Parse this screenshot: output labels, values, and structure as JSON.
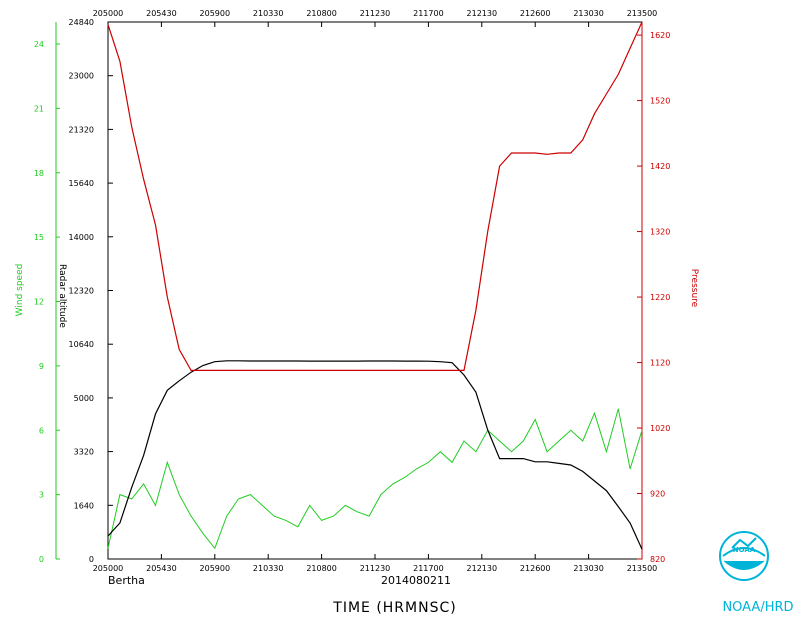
{
  "chart_data": {
    "type": "line",
    "x_axis": {
      "label": "TIME (HRMNSC)",
      "ticks": [
        "205000",
        "205430",
        "205900",
        "210330",
        "210800",
        "211230",
        "211700",
        "212130",
        "212600",
        "213030",
        "213500"
      ]
    },
    "left_axes": [
      {
        "label": "Wind speed",
        "color": "#22cc22",
        "ylim": [
          0,
          25
        ],
        "ticks": [
          "0",
          "3",
          "6",
          "9",
          "12",
          "15",
          "18",
          "21",
          "24"
        ]
      },
      {
        "label": "Radar altitude",
        "color": "#000000",
        "ylim": [
          0,
          24840
        ],
        "ticks": [
          "0",
          "1640",
          "3320",
          "5000",
          "10640",
          "12320",
          "14000",
          "15640",
          "21320",
          "23000",
          "24840"
        ]
      }
    ],
    "right_axis": {
      "label": "Pressure",
      "color": "#cc0000",
      "ylim": [
        820,
        1640
      ],
      "ticks": [
        "820",
        "920",
        "1020",
        "1120",
        "1220",
        "1320",
        "1420",
        "1520",
        "1620"
      ]
    },
    "series": [
      {
        "name": "Wind speed",
        "color": "#22cc22",
        "axis": "left_wind",
        "x": [
          0,
          1,
          2,
          3,
          4,
          5,
          6,
          7,
          8,
          9,
          10,
          11,
          12,
          13,
          14,
          15,
          16,
          17,
          18,
          19,
          20,
          21,
          22,
          23,
          24,
          25,
          26,
          27,
          28,
          29,
          30,
          31,
          32,
          33,
          34,
          35,
          36,
          37,
          38,
          39,
          40,
          41,
          42,
          43,
          44,
          45
        ],
        "values": [
          0.5,
          3.0,
          2.8,
          3.5,
          2.5,
          4.5,
          3.0,
          2.0,
          1.2,
          0.5,
          2.0,
          2.8,
          3.0,
          2.5,
          2.0,
          1.8,
          1.5,
          2.5,
          1.8,
          2.0,
          2.5,
          2.2,
          2.0,
          3.0,
          3.5,
          3.8,
          4.2,
          4.5,
          5.0,
          4.5,
          5.5,
          5.0,
          6.0,
          5.5,
          5.0,
          5.5,
          6.5,
          5.0,
          5.5,
          6.0,
          5.5,
          6.8,
          5.0,
          7.0,
          4.2,
          6.0
        ]
      },
      {
        "name": "Radar altitude",
        "color": "#000000",
        "axis": "left_alt",
        "x": [
          0,
          0.5,
          1,
          2,
          3,
          4,
          5,
          6,
          7,
          8,
          9,
          10,
          11,
          12,
          13,
          14,
          15,
          16,
          17,
          18,
          19,
          20,
          21,
          22,
          23,
          24,
          25,
          26,
          27,
          28,
          29,
          30,
          31,
          32,
          33,
          34,
          35,
          36,
          37,
          38,
          39,
          40,
          41,
          42,
          43,
          44,
          45
        ],
        "values": [
          700,
          900,
          1100,
          2200,
          3200,
          4500,
          5800,
          6800,
          7700,
          8400,
          8800,
          8900,
          8900,
          8880,
          8880,
          8880,
          8880,
          8880,
          8870,
          8870,
          8870,
          8870,
          8870,
          8880,
          8880,
          8880,
          8860,
          8860,
          8850,
          8800,
          8700,
          7400,
          5600,
          4000,
          3100,
          3100,
          3100,
          3000,
          3000,
          2950,
          2900,
          2700,
          2400,
          2100,
          1600,
          1100,
          300
        ]
      },
      {
        "name": "Pressure",
        "color": "#cc0000",
        "axis": "right",
        "x": [
          0,
          1,
          2,
          3,
          4,
          5,
          6,
          7,
          8,
          9,
          10,
          11,
          12,
          13,
          14,
          15,
          16,
          17,
          18,
          19,
          20,
          21,
          22,
          23,
          24,
          25,
          26,
          27,
          28,
          29,
          30,
          31,
          32,
          33,
          34,
          35,
          36,
          37,
          38,
          39,
          40,
          41,
          42,
          43,
          44,
          45
        ],
        "values": [
          1636,
          1580,
          1480,
          1400,
          1330,
          1220,
          1140,
          1108,
          1108,
          1108,
          1108,
          1108,
          1108,
          1108,
          1108,
          1108,
          1108,
          1108,
          1108,
          1108,
          1108,
          1108,
          1108,
          1108,
          1108,
          1108,
          1108,
          1108,
          1108,
          1108,
          1108,
          1200,
          1320,
          1420,
          1440,
          1440,
          1440,
          1438,
          1440,
          1440,
          1460,
          1500,
          1530,
          1560,
          1600,
          1640
        ]
      }
    ],
    "footer": {
      "left_label": "Bertha",
      "center_label": "2014080211"
    }
  },
  "logo_text": "NOAA/HRD"
}
